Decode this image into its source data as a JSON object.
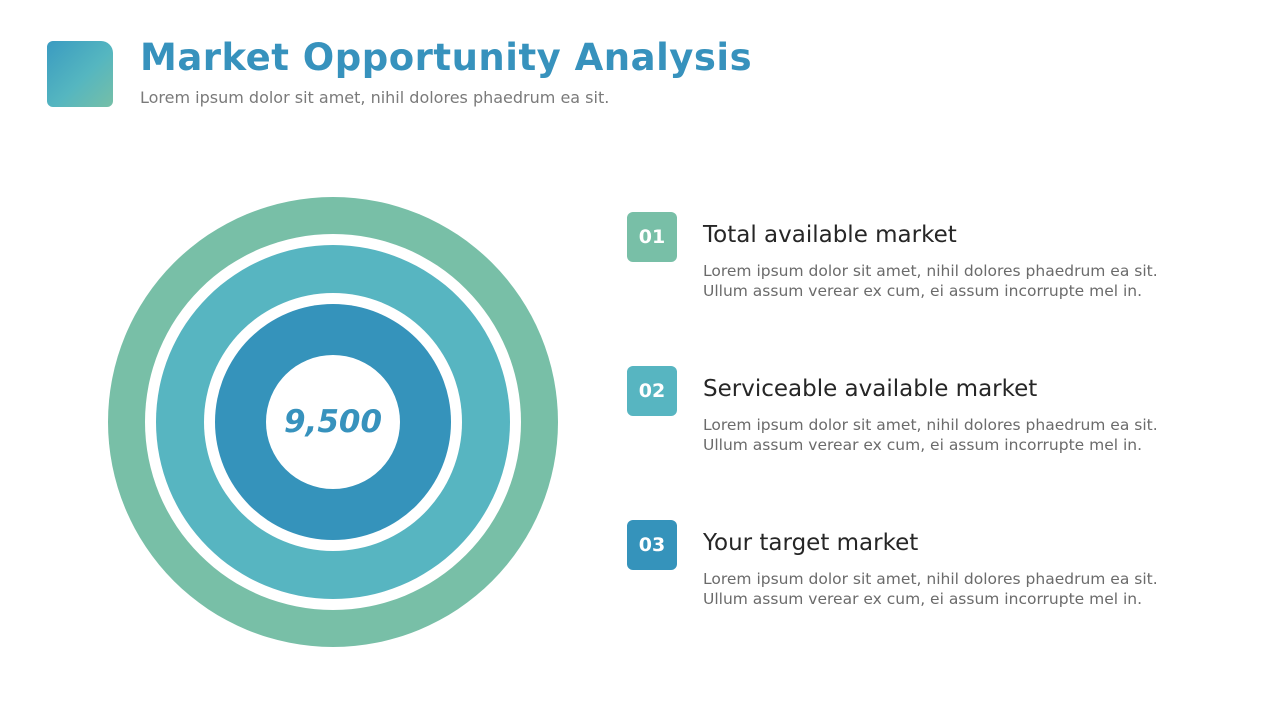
{
  "header": {
    "title": "Market Opportunity Analysis",
    "subtitle": "Lorem ipsum dolor sit amet, nihil dolores phaedrum ea sit."
  },
  "diagram": {
    "center_value": "9,500",
    "colors": {
      "outer": "#78bfa7",
      "middle": "#57b5c1",
      "inner": "#3593bb"
    }
  },
  "items": [
    {
      "number": "01",
      "title": "Total available market",
      "desc_line1": "Lorem ipsum dolor sit amet, nihil dolores phaedrum ea sit.",
      "desc_line2": "Ullum assum verear ex cum, ei assum incorrupte mel in.",
      "color": "#78bfa7"
    },
    {
      "number": "02",
      "title": "Serviceable available market",
      "desc_line1": "Lorem ipsum dolor sit amet, nihil dolores phaedrum ea sit.",
      "desc_line2": "Ullum assum verear ex cum, ei assum incorrupte mel in.",
      "color": "#57b5c1"
    },
    {
      "number": "03",
      "title": "Your target market",
      "desc_line1": "Lorem ipsum dolor sit amet, nihil dolores phaedrum ea sit.",
      "desc_line2": "Ullum assum verear ex cum, ei assum incorrupte mel in.",
      "color": "#3593bb"
    }
  ]
}
